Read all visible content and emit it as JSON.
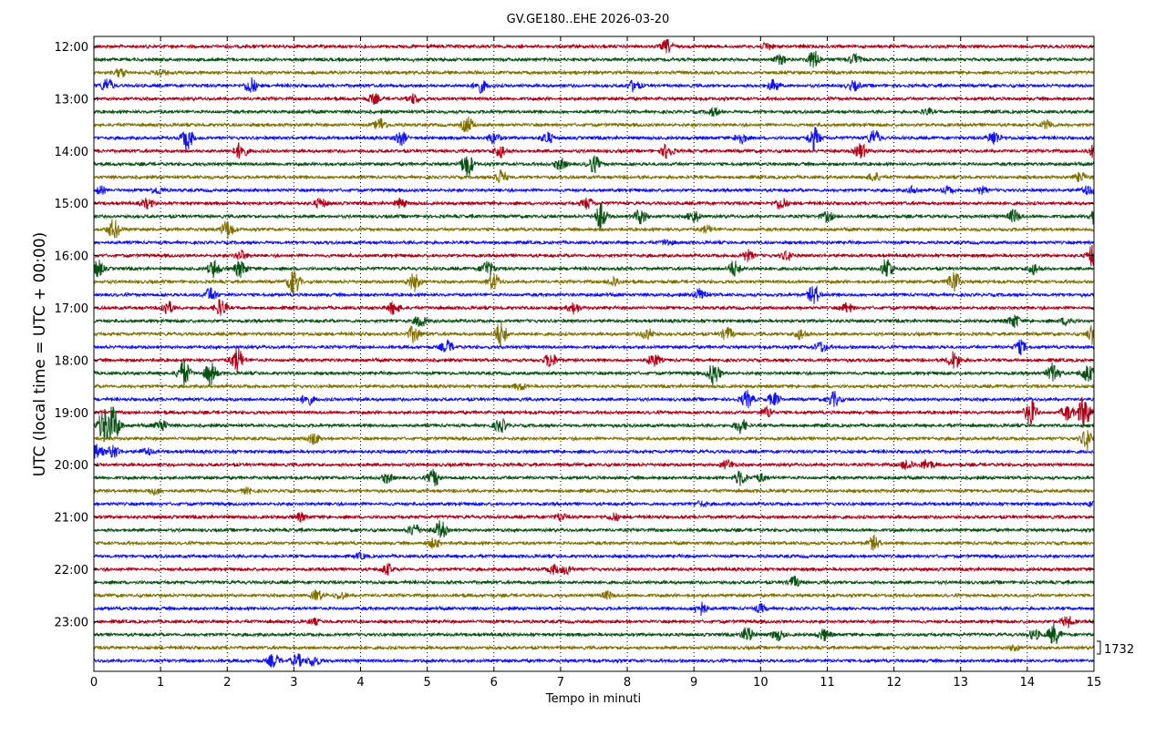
{
  "chart_data": {
    "type": "line",
    "title": "GV.GE180..EHE 2026-03-20",
    "xlabel": "Tempo in minuti",
    "ylabel": "UTC (local time = UTC + 00:00)",
    "xlim": [
      0,
      15
    ],
    "x_ticks": [
      "0",
      "1",
      "2",
      "3",
      "4",
      "5",
      "6",
      "7",
      "8",
      "9",
      "10",
      "11",
      "12",
      "13",
      "14",
      "15"
    ],
    "y_ticks": [
      "12:00",
      "13:00",
      "14:00",
      "15:00",
      "16:00",
      "17:00",
      "18:00",
      "19:00",
      "20:00",
      "21:00",
      "22:00",
      "23:00"
    ],
    "scale_label": "1732",
    "grid": "vertical dotted",
    "trace_colors": [
      "#b00018",
      "#0a5214",
      "#807000",
      "#1212ee"
    ],
    "start_color_index": 0,
    "trace_count": 48,
    "traces_per_hour": 4,
    "events": [
      {
        "row": 0,
        "minute": 8.6,
        "amp": 7
      },
      {
        "row": 0,
        "minute": 10.1,
        "amp": 4
      },
      {
        "row": 1,
        "minute": 10.8,
        "amp": 10
      },
      {
        "row": 1,
        "minute": 11.4,
        "amp": 6
      },
      {
        "row": 1,
        "minute": 10.3,
        "amp": 5
      },
      {
        "row": 2,
        "minute": 0.4,
        "amp": 5
      },
      {
        "row": 2,
        "minute": 1.0,
        "amp": 4
      },
      {
        "row": 3,
        "minute": 0.2,
        "amp": 8
      },
      {
        "row": 3,
        "minute": 2.35,
        "amp": 9
      },
      {
        "row": 3,
        "minute": 5.8,
        "amp": 7
      },
      {
        "row": 3,
        "minute": 8.1,
        "amp": 6
      },
      {
        "row": 3,
        "minute": 10.2,
        "amp": 6
      },
      {
        "row": 3,
        "minute": 11.4,
        "amp": 5
      },
      {
        "row": 4,
        "minute": 4.2,
        "amp": 5
      },
      {
        "row": 4,
        "minute": 4.8,
        "amp": 5
      },
      {
        "row": 5,
        "minute": 9.3,
        "amp": 4
      },
      {
        "row": 5,
        "minute": 12.5,
        "amp": 3
      },
      {
        "row": 6,
        "minute": 4.3,
        "amp": 7
      },
      {
        "row": 6,
        "minute": 5.6,
        "amp": 9
      },
      {
        "row": 6,
        "minute": 14.3,
        "amp": 5
      },
      {
        "row": 7,
        "minute": 1.4,
        "amp": 12
      },
      {
        "row": 7,
        "minute": 4.6,
        "amp": 8
      },
      {
        "row": 7,
        "minute": 6.0,
        "amp": 6
      },
      {
        "row": 7,
        "minute": 6.8,
        "amp": 6
      },
      {
        "row": 7,
        "minute": 9.7,
        "amp": 6
      },
      {
        "row": 7,
        "minute": 10.8,
        "amp": 12
      },
      {
        "row": 7,
        "minute": 11.7,
        "amp": 9
      },
      {
        "row": 7,
        "minute": 13.5,
        "amp": 8
      },
      {
        "row": 8,
        "minute": 2.2,
        "amp": 9
      },
      {
        "row": 8,
        "minute": 6.1,
        "amp": 7
      },
      {
        "row": 8,
        "minute": 8.6,
        "amp": 8
      },
      {
        "row": 8,
        "minute": 11.5,
        "amp": 8
      },
      {
        "row": 8,
        "minute": 15.0,
        "amp": 7
      },
      {
        "row": 9,
        "minute": 5.6,
        "amp": 14
      },
      {
        "row": 9,
        "minute": 7.5,
        "amp": 9
      },
      {
        "row": 9,
        "minute": 7.0,
        "amp": 6
      },
      {
        "row": 10,
        "minute": 6.1,
        "amp": 8
      },
      {
        "row": 10,
        "minute": 11.7,
        "amp": 5
      },
      {
        "row": 10,
        "minute": 14.8,
        "amp": 5
      },
      {
        "row": 11,
        "minute": 0.1,
        "amp": 4
      },
      {
        "row": 11,
        "minute": 0.95,
        "amp": 4
      },
      {
        "row": 11,
        "minute": 12.3,
        "amp": 4
      },
      {
        "row": 11,
        "minute": 12.8,
        "amp": 4
      },
      {
        "row": 11,
        "minute": 13.3,
        "amp": 4
      },
      {
        "row": 11,
        "minute": 14.9,
        "amp": 5
      },
      {
        "row": 12,
        "minute": 0.8,
        "amp": 5
      },
      {
        "row": 12,
        "minute": 3.4,
        "amp": 5
      },
      {
        "row": 12,
        "minute": 4.6,
        "amp": 5
      },
      {
        "row": 12,
        "minute": 7.4,
        "amp": 6
      },
      {
        "row": 12,
        "minute": 10.3,
        "amp": 7
      },
      {
        "row": 13,
        "minute": 7.6,
        "amp": 14
      },
      {
        "row": 13,
        "minute": 8.2,
        "amp": 9
      },
      {
        "row": 13,
        "minute": 9.0,
        "amp": 7
      },
      {
        "row": 13,
        "minute": 11.0,
        "amp": 5
      },
      {
        "row": 13,
        "minute": 13.8,
        "amp": 7
      },
      {
        "row": 13,
        "minute": 15.0,
        "amp": 8
      },
      {
        "row": 14,
        "minute": 0.3,
        "amp": 11
      },
      {
        "row": 14,
        "minute": 2.0,
        "amp": 10
      },
      {
        "row": 14,
        "minute": 9.2,
        "amp": 4
      },
      {
        "row": 15,
        "minute": 8.6,
        "amp": 3
      },
      {
        "row": 16,
        "minute": 2.2,
        "amp": 5
      },
      {
        "row": 16,
        "minute": 9.8,
        "amp": 6
      },
      {
        "row": 16,
        "minute": 10.4,
        "amp": 5
      },
      {
        "row": 16,
        "minute": 15.0,
        "amp": 14
      },
      {
        "row": 17,
        "minute": 0.05,
        "amp": 10
      },
      {
        "row": 17,
        "minute": 1.8,
        "amp": 9
      },
      {
        "row": 17,
        "minute": 2.2,
        "amp": 9
      },
      {
        "row": 17,
        "minute": 5.9,
        "amp": 10
      },
      {
        "row": 17,
        "minute": 9.6,
        "amp": 9
      },
      {
        "row": 17,
        "minute": 11.9,
        "amp": 12
      },
      {
        "row": 17,
        "minute": 14.1,
        "amp": 6
      },
      {
        "row": 18,
        "minute": 3.0,
        "amp": 14
      },
      {
        "row": 18,
        "minute": 4.8,
        "amp": 10
      },
      {
        "row": 18,
        "minute": 6.0,
        "amp": 9
      },
      {
        "row": 18,
        "minute": 7.8,
        "amp": 6
      },
      {
        "row": 18,
        "minute": 12.9,
        "amp": 12
      },
      {
        "row": 19,
        "minute": 1.75,
        "amp": 8
      },
      {
        "row": 19,
        "minute": 9.1,
        "amp": 7
      },
      {
        "row": 19,
        "minute": 10.8,
        "amp": 10
      },
      {
        "row": 20,
        "minute": 1.1,
        "amp": 8
      },
      {
        "row": 20,
        "minute": 1.9,
        "amp": 9
      },
      {
        "row": 20,
        "minute": 4.5,
        "amp": 7
      },
      {
        "row": 20,
        "minute": 7.2,
        "amp": 6
      },
      {
        "row": 20,
        "minute": 11.3,
        "amp": 5
      },
      {
        "row": 21,
        "minute": 4.9,
        "amp": 7
      },
      {
        "row": 21,
        "minute": 13.8,
        "amp": 7
      },
      {
        "row": 21,
        "minute": 14.6,
        "amp": 5
      },
      {
        "row": 22,
        "minute": 4.8,
        "amp": 9
      },
      {
        "row": 22,
        "minute": 6.1,
        "amp": 14
      },
      {
        "row": 22,
        "minute": 8.3,
        "amp": 6
      },
      {
        "row": 22,
        "minute": 9.5,
        "amp": 7
      },
      {
        "row": 22,
        "minute": 10.6,
        "amp": 6
      },
      {
        "row": 22,
        "minute": 15.0,
        "amp": 12
      },
      {
        "row": 23,
        "minute": 5.3,
        "amp": 7
      },
      {
        "row": 23,
        "minute": 10.9,
        "amp": 6
      },
      {
        "row": 23,
        "minute": 13.9,
        "amp": 7
      },
      {
        "row": 24,
        "minute": 2.15,
        "amp": 14
      },
      {
        "row": 24,
        "minute": 6.85,
        "amp": 8
      },
      {
        "row": 24,
        "minute": 8.4,
        "amp": 7
      },
      {
        "row": 24,
        "minute": 12.9,
        "amp": 10
      },
      {
        "row": 25,
        "minute": 1.35,
        "amp": 14
      },
      {
        "row": 25,
        "minute": 1.75,
        "amp": 12
      },
      {
        "row": 25,
        "minute": 9.3,
        "amp": 12
      },
      {
        "row": 25,
        "minute": 14.4,
        "amp": 12
      },
      {
        "row": 25,
        "minute": 14.9,
        "amp": 10
      },
      {
        "row": 26,
        "minute": 6.4,
        "amp": 4
      },
      {
        "row": 27,
        "minute": 3.2,
        "amp": 6
      },
      {
        "row": 27,
        "minute": 9.8,
        "amp": 9
      },
      {
        "row": 27,
        "minute": 10.2,
        "amp": 7
      },
      {
        "row": 27,
        "minute": 11.1,
        "amp": 8
      },
      {
        "row": 28,
        "minute": 10.1,
        "amp": 6
      },
      {
        "row": 28,
        "minute": 14.05,
        "amp": 14
      },
      {
        "row": 28,
        "minute": 14.85,
        "amp": 18
      },
      {
        "row": 28,
        "minute": 14.6,
        "amp": 8
      },
      {
        "row": 29,
        "minute": 0.15,
        "amp": 18
      },
      {
        "row": 29,
        "minute": 0.3,
        "amp": 20
      },
      {
        "row": 29,
        "minute": 1.0,
        "amp": 7
      },
      {
        "row": 29,
        "minute": 6.1,
        "amp": 8
      },
      {
        "row": 29,
        "minute": 9.7,
        "amp": 8
      },
      {
        "row": 30,
        "minute": 3.3,
        "amp": 6
      },
      {
        "row": 30,
        "minute": 14.9,
        "amp": 12
      },
      {
        "row": 31,
        "minute": 0.05,
        "amp": 8
      },
      {
        "row": 31,
        "minute": 0.3,
        "amp": 7
      },
      {
        "row": 31,
        "minute": 0.8,
        "amp": 4
      },
      {
        "row": 32,
        "minute": 9.5,
        "amp": 5
      },
      {
        "row": 32,
        "minute": 12.2,
        "amp": 6
      },
      {
        "row": 32,
        "minute": 12.5,
        "amp": 6
      },
      {
        "row": 33,
        "minute": 4.4,
        "amp": 5
      },
      {
        "row": 33,
        "minute": 5.1,
        "amp": 9
      },
      {
        "row": 33,
        "minute": 9.7,
        "amp": 8
      },
      {
        "row": 33,
        "minute": 10.0,
        "amp": 4
      },
      {
        "row": 34,
        "minute": 0.9,
        "amp": 4
      },
      {
        "row": 34,
        "minute": 2.3,
        "amp": 3
      },
      {
        "row": 35,
        "minute": 9.1,
        "amp": 3
      },
      {
        "row": 35,
        "minute": 15.0,
        "amp": 4
      },
      {
        "row": 36,
        "minute": 3.1,
        "amp": 4
      },
      {
        "row": 36,
        "minute": 7.0,
        "amp": 4
      },
      {
        "row": 36,
        "minute": 7.8,
        "amp": 4
      },
      {
        "row": 37,
        "minute": 4.8,
        "amp": 7
      },
      {
        "row": 37,
        "minute": 5.2,
        "amp": 10
      },
      {
        "row": 38,
        "minute": 5.1,
        "amp": 5
      },
      {
        "row": 38,
        "minute": 11.7,
        "amp": 7
      },
      {
        "row": 39,
        "minute": 4.0,
        "amp": 3
      },
      {
        "row": 40,
        "minute": 4.4,
        "amp": 6
      },
      {
        "row": 40,
        "minute": 6.9,
        "amp": 5
      },
      {
        "row": 40,
        "minute": 7.1,
        "amp": 5
      },
      {
        "row": 41,
        "minute": 10.5,
        "amp": 6
      },
      {
        "row": 42,
        "minute": 3.35,
        "amp": 6
      },
      {
        "row": 42,
        "minute": 3.7,
        "amp": 4
      },
      {
        "row": 42,
        "minute": 7.7,
        "amp": 4
      },
      {
        "row": 43,
        "minute": 9.1,
        "amp": 8
      },
      {
        "row": 43,
        "minute": 10.0,
        "amp": 4
      },
      {
        "row": 44,
        "minute": 3.3,
        "amp": 3
      },
      {
        "row": 44,
        "minute": 14.6,
        "amp": 6
      },
      {
        "row": 45,
        "minute": 9.8,
        "amp": 8
      },
      {
        "row": 45,
        "minute": 10.25,
        "amp": 6
      },
      {
        "row": 45,
        "minute": 10.95,
        "amp": 6
      },
      {
        "row": 45,
        "minute": 14.4,
        "amp": 11
      },
      {
        "row": 45,
        "minute": 14.1,
        "amp": 5
      },
      {
        "row": 46,
        "minute": 13.8,
        "amp": 3
      },
      {
        "row": 47,
        "minute": 2.7,
        "amp": 7
      },
      {
        "row": 47,
        "minute": 3.05,
        "amp": 7
      },
      {
        "row": 47,
        "minute": 3.3,
        "amp": 6
      }
    ]
  }
}
